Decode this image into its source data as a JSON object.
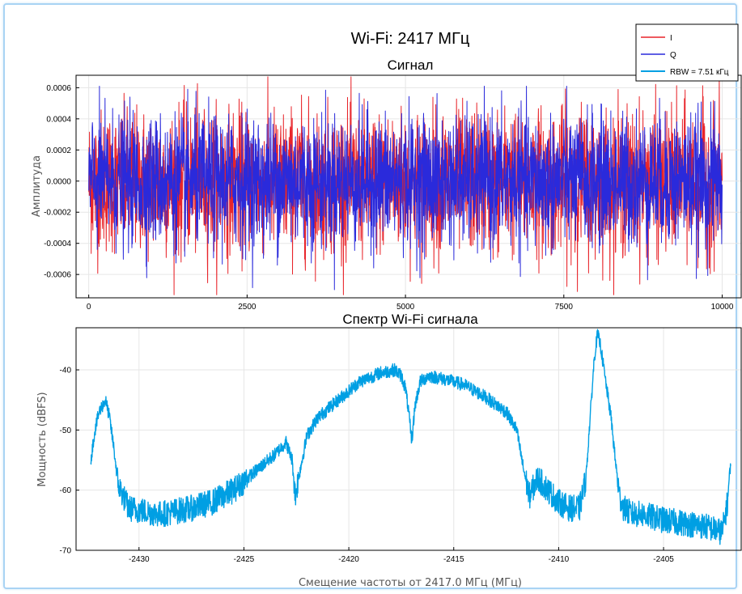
{
  "suptitle": "Wi-Fi: 2417 МГц",
  "colors": {
    "I": "#e8242a",
    "Q": "#2a2adb",
    "spectrum": "#009fe3",
    "grid": "#e6e6e6",
    "frame": "#a9d3f4"
  },
  "legend": {
    "placement": "top-right",
    "entries": [
      {
        "label": "I",
        "color": "#e8242a"
      },
      {
        "label": "Q",
        "color": "#2a2adb"
      },
      {
        "label": "RBW = 7.51 кГц",
        "color": "#009fe3"
      }
    ]
  },
  "chart_data": [
    {
      "type": "line",
      "title": "Сигнал",
      "xlabel": "",
      "ylabel": "Амплитуда",
      "xlim": [
        -200,
        10300
      ],
      "ylim": [
        -0.00075,
        0.00068
      ],
      "xticks": [
        0,
        2500,
        5000,
        7500,
        10000
      ],
      "xtick_labels": [
        "0",
        "2500",
        "5000",
        "7500",
        "10000"
      ],
      "yticks": [
        0.0006,
        0.0004,
        0.0002,
        0.0,
        -0.0002,
        -0.0004,
        -0.0006
      ],
      "ytick_labels": [
        "0.0006",
        "0.0004",
        "0.0002",
        "0.0000",
        "-0.0002",
        "-0.0004",
        "-0.0006"
      ],
      "grid": true,
      "series": [
        {
          "name": "I",
          "n_samples": 10000,
          "range": [
            -0.00073,
            0.00067
          ],
          "typical_band": [
            -0.00035,
            0.00035
          ]
        },
        {
          "name": "Q",
          "n_samples": 10000,
          "range": [
            -0.0007,
            0.00061
          ],
          "typical_band": [
            -0.00032,
            0.00032
          ]
        }
      ]
    },
    {
      "type": "line",
      "title": "Спектр Wi-Fi сигнала",
      "xlabel": "Смещение частоты от 2417.0 МГц (МГц)",
      "ylabel": "Мощность (dBFS)",
      "xlim": [
        -2433,
        -2401.3
      ],
      "ylim": [
        -70,
        -33
      ],
      "xticks": [
        -2430,
        -2425,
        -2420,
        -2415,
        -2410,
        -2405
      ],
      "xtick_labels": [
        "-2430",
        "-2425",
        "-2420",
        "-2415",
        "-2410",
        "-2405"
      ],
      "yticks": [
        -40,
        -50,
        -60,
        -70
      ],
      "ytick_labels": [
        "-40",
        "-50",
        "-60",
        "-70"
      ],
      "grid": true,
      "series": [
        {
          "name": "RBW = 7.51 кГц",
          "x": [
            -2432.3,
            -2432.1,
            -2431.9,
            -2431.6,
            -2431.4,
            -2431.2,
            -2431.0,
            -2430.5,
            -2429.0,
            -2427.5,
            -2426.5,
            -2425.5,
            -2424.5,
            -2423.5,
            -2423.0,
            -2422.7,
            -2422.55,
            -2422.4,
            -2422.0,
            -2421.5,
            -2420.5,
            -2419.5,
            -2418.5,
            -2417.8,
            -2417.5,
            -2417.3,
            -2417.15,
            -2417.0,
            -2416.85,
            -2416.6,
            -2416.2,
            -2415.5,
            -2414.5,
            -2413.5,
            -2412.5,
            -2412.0,
            -2411.7,
            -2411.4,
            -2411.0,
            -2410.5,
            -2410.0,
            -2409.5,
            -2409.0,
            -2408.7,
            -2408.5,
            -2408.3,
            -2408.15,
            -2408.0,
            -2407.8,
            -2407.5,
            -2407.3,
            -2407.1,
            -2406.9,
            -2406.5,
            -2406.0,
            -2405.0,
            -2404.0,
            -2403.0,
            -2402.2,
            -2401.95,
            -2401.8
          ],
          "y": [
            -55,
            -50,
            -47,
            -45,
            -48,
            -53,
            -59,
            -63,
            -64,
            -63,
            -62,
            -60,
            -57,
            -54,
            -52,
            -55,
            -61,
            -58,
            -51,
            -48,
            -45,
            -42,
            -40.5,
            -40,
            -41,
            -43,
            -47,
            -52,
            -46,
            -42,
            -41,
            -41.5,
            -42.5,
            -44.5,
            -47,
            -50,
            -56,
            -61,
            -58,
            -60,
            -62,
            -63,
            -63,
            -58,
            -48,
            -38,
            -34,
            -36,
            -41,
            -48,
            -55,
            -61,
            -63,
            -64,
            -64,
            -65,
            -65.5,
            -66,
            -67,
            -62,
            -55
          ]
        }
      ]
    }
  ]
}
